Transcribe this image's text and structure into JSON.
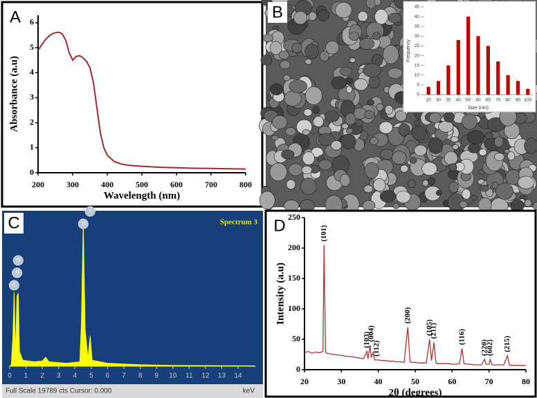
{
  "chart_data": [
    {
      "panel": "A",
      "type": "line",
      "xlabel": "Wavelength (nm)",
      "ylabel": "Absorbance (a.u)",
      "color": "#9e2a2b",
      "x": [
        200,
        210,
        220,
        230,
        240,
        250,
        260,
        270,
        280,
        290,
        300,
        310,
        320,
        330,
        340,
        350,
        360,
        370,
        380,
        390,
        400,
        420,
        440,
        460,
        500,
        550,
        600,
        650,
        700,
        750,
        800
      ],
      "values": [
        4.9,
        5.1,
        5.3,
        5.45,
        5.55,
        5.6,
        5.62,
        5.55,
        5.3,
        4.8,
        4.5,
        4.65,
        4.68,
        4.6,
        4.45,
        4.2,
        3.6,
        2.6,
        1.6,
        1.0,
        0.7,
        0.45,
        0.35,
        0.3,
        0.26,
        0.22,
        0.2,
        0.18,
        0.17,
        0.16,
        0.15
      ],
      "xlim": [
        200,
        800
      ],
      "ylim": [
        0,
        6.3
      ],
      "xticks": [
        200,
        300,
        400,
        500,
        600,
        700,
        800
      ],
      "yticks": [
        0,
        1,
        2,
        3,
        4,
        5,
        6
      ]
    },
    {
      "panel": "B",
      "type": "bar",
      "xlabel": "Size (nm)",
      "ylabel": "Frequency",
      "color": "#c00000",
      "categories": [
        "20",
        "30",
        "35",
        "40",
        "50",
        "60",
        "65",
        "70",
        "80",
        "90",
        "100"
      ],
      "values": [
        4,
        7,
        15,
        28,
        40,
        30,
        25,
        17,
        10,
        7,
        3
      ],
      "ylim": [
        0,
        45
      ],
      "yticks": [
        0,
        5,
        10,
        15,
        20,
        25,
        30,
        35,
        40,
        45
      ]
    },
    {
      "panel": "C",
      "type": "area",
      "title": "Spectrum 3",
      "footer": "Full Scale 19789 cts Cursor: 0.000",
      "xlabel": "keV",
      "color": "#ffff00",
      "x": [
        0,
        0.1,
        0.2,
        0.27,
        0.35,
        0.45,
        0.52,
        0.6,
        0.8,
        1.5,
        2.0,
        2.2,
        2.4,
        3.5,
        4.3,
        4.4,
        4.51,
        4.62,
        4.8,
        4.93,
        5.05,
        6,
        8,
        10,
        15
      ],
      "values": [
        0,
        200,
        4000,
        10000,
        1500,
        9500,
        9800,
        2000,
        800,
        600,
        700,
        1200,
        600,
        400,
        600,
        6000,
        19500,
        5000,
        1000,
        4100,
        800,
        400,
        200,
        100,
        50
      ],
      "xlim": [
        0,
        15.1
      ],
      "ylim": [
        0,
        19789
      ],
      "xticks": [
        0,
        1,
        2,
        3,
        4,
        5,
        6,
        7,
        8,
        9,
        10,
        11,
        12,
        13,
        14
      ],
      "annotations": [
        {
          "text": "C",
          "x": 0.27
        },
        {
          "text": "Ti",
          "x": 0.45
        },
        {
          "text": "O",
          "x": 0.52
        },
        {
          "text": "Ti",
          "x": 4.51
        },
        {
          "text": "Ti",
          "x": 4.93
        }
      ]
    },
    {
      "panel": "D",
      "type": "line",
      "xlabel": "2θ (degrees)",
      "ylabel": "Intensity (a.u)",
      "color": "#b03030",
      "x": [
        20,
        21,
        22,
        23,
        24,
        25,
        25.3,
        25.7,
        26,
        27,
        28,
        29,
        30,
        31,
        32,
        33,
        34,
        35,
        36,
        36.9,
        37.2,
        37.8,
        38.1,
        38.6,
        39,
        40,
        41,
        42,
        43,
        44,
        45,
        46,
        47,
        48,
        48.6,
        49,
        50,
        51,
        52,
        53,
        53.9,
        54.4,
        55.1,
        55.6,
        56,
        57,
        58,
        59,
        60,
        61,
        62,
        62.7,
        63.2,
        64,
        65,
        66,
        67,
        68,
        68.8,
        69.2,
        70,
        70.3,
        70.8,
        72,
        73,
        74,
        75,
        75.5,
        76,
        78,
        80
      ],
      "values": [
        28,
        30,
        27,
        29,
        28,
        30,
        205,
        30,
        27,
        26,
        25,
        24,
        24,
        22,
        22,
        21,
        20,
        19,
        18,
        30,
        18,
        40,
        20,
        28,
        16,
        16,
        15,
        15,
        14,
        14,
        13,
        13,
        12,
        70,
        13,
        12,
        12,
        11,
        11,
        11,
        50,
        15,
        45,
        11,
        10,
        10,
        10,
        10,
        9,
        9,
        10,
        35,
        10,
        9,
        9,
        8,
        8,
        8,
        17,
        9,
        9,
        17,
        8,
        8,
        8,
        8,
        23,
        8,
        7,
        7,
        7
      ],
      "xlim": [
        20,
        80
      ],
      "ylim": [
        0,
        250
      ],
      "xticks": [
        20,
        30,
        40,
        50,
        60,
        70,
        80
      ],
      "yticks": [
        0,
        50,
        100,
        150,
        200,
        250
      ],
      "annotations": [
        {
          "text": "(101)",
          "x": 25.3
        },
        {
          "text": "(103)",
          "x": 37.0
        },
        {
          "text": "(004)",
          "x": 38.2
        },
        {
          "text": "(112)",
          "x": 39.6
        },
        {
          "text": "(200)",
          "x": 48.0
        },
        {
          "text": "(105)",
          "x": 53.9
        },
        {
          "text": "(211)",
          "x": 55.1
        },
        {
          "text": "(116)",
          "x": 62.7
        },
        {
          "text": "(220)",
          "x": 68.8
        },
        {
          "text": "(602)",
          "x": 70.3
        },
        {
          "text": "(215)",
          "x": 75.0
        }
      ]
    }
  ]
}
